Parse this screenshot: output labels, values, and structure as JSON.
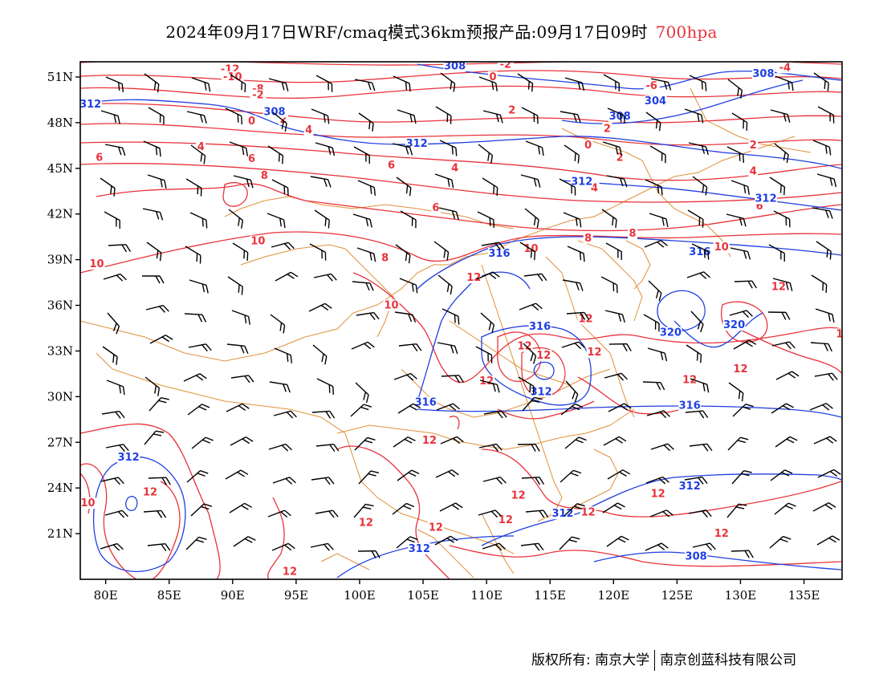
{
  "title": {
    "main": "2024年09月17日WRF/cmaq模式36km预报产品:09月17日09时",
    "level": "700hpa"
  },
  "colors": {
    "temperature": "#e8333a",
    "geopotential": "#1f3fe0",
    "border": "#e0903a",
    "wind": "#000000"
  },
  "icons": {
    "wind": "wind-barb-icon"
  },
  "axes": {
    "lon_labels": [
      "80E",
      "85E",
      "90E",
      "95E",
      "100E",
      "105E",
      "110E",
      "115E",
      "120E",
      "125E",
      "130E",
      "135E"
    ],
    "lat_labels": [
      "51N",
      "48N",
      "45N",
      "42N",
      "39N",
      "36N",
      "33N",
      "30N",
      "27N",
      "24N",
      "21N"
    ]
  },
  "map": {
    "lon_range": [
      78,
      138
    ],
    "lat_range": [
      18,
      52
    ],
    "temperature_labels": [
      {
        "text": "-2",
        "lon": 111.5,
        "lat": 51.6
      },
      {
        "text": "0",
        "lon": 110.5,
        "lat": 50.8
      },
      {
        "text": "2",
        "lon": 112.0,
        "lat": 48.6
      },
      {
        "text": "-4",
        "lon": 133.5,
        "lat": 51.4
      },
      {
        "text": "-6",
        "lon": 123.0,
        "lat": 50.2
      },
      {
        "text": "-12",
        "lon": 89.8,
        "lat": 51.3
      },
      {
        "text": "-10",
        "lon": 90.0,
        "lat": 50.8
      },
      {
        "text": "-8",
        "lon": 92.0,
        "lat": 50.0
      },
      {
        "text": "-2",
        "lon": 92.0,
        "lat": 49.6
      },
      {
        "text": "0",
        "lon": 91.5,
        "lat": 47.9
      },
      {
        "text": "2",
        "lon": 94.0,
        "lat": 48.0
      },
      {
        "text": "4",
        "lon": 96.0,
        "lat": 47.3
      },
      {
        "text": "4",
        "lon": 87.5,
        "lat": 46.2
      },
      {
        "text": "6",
        "lon": 79.5,
        "lat": 45.5
      },
      {
        "text": "6",
        "lon": 91.5,
        "lat": 45.4
      },
      {
        "text": "6",
        "lon": 102.5,
        "lat": 45.0
      },
      {
        "text": "4",
        "lon": 107.5,
        "lat": 44.8
      },
      {
        "text": "0",
        "lon": 118.0,
        "lat": 46.3
      },
      {
        "text": "2",
        "lon": 119.5,
        "lat": 47.4
      },
      {
        "text": "2",
        "lon": 120.5,
        "lat": 45.5
      },
      {
        "text": "2",
        "lon": 131.0,
        "lat": 46.3
      },
      {
        "text": "4",
        "lon": 118.5,
        "lat": 43.5
      },
      {
        "text": "4",
        "lon": 131.0,
        "lat": 44.6
      },
      {
        "text": "8",
        "lon": 92.5,
        "lat": 44.3
      },
      {
        "text": "6",
        "lon": 106.0,
        "lat": 42.2
      },
      {
        "text": "6",
        "lon": 131.5,
        "lat": 42.3
      },
      {
        "text": "10",
        "lon": 92.0,
        "lat": 40.0
      },
      {
        "text": "10",
        "lon": 79.3,
        "lat": 38.5
      },
      {
        "text": "8",
        "lon": 102.0,
        "lat": 38.9
      },
      {
        "text": "10",
        "lon": 113.5,
        "lat": 39.5
      },
      {
        "text": "8",
        "lon": 118.0,
        "lat": 40.2
      },
      {
        "text": "8",
        "lon": 121.5,
        "lat": 40.5
      },
      {
        "text": "10",
        "lon": 128.5,
        "lat": 39.6
      },
      {
        "text": "12",
        "lon": 109.0,
        "lat": 37.6
      },
      {
        "text": "12",
        "lon": 133.0,
        "lat": 37.0
      },
      {
        "text": "10",
        "lon": 102.5,
        "lat": 35.8
      },
      {
        "text": "12",
        "lon": 117.8,
        "lat": 34.9
      },
      {
        "text": "12",
        "lon": 113.0,
        "lat": 33.1
      },
      {
        "text": "12",
        "lon": 114.5,
        "lat": 32.5
      },
      {
        "text": "12",
        "lon": 118.5,
        "lat": 32.7
      },
      {
        "text": "12",
        "lon": 130.0,
        "lat": 31.6
      },
      {
        "text": "12",
        "lon": 110.0,
        "lat": 30.8
      },
      {
        "text": "12",
        "lon": 126.0,
        "lat": 30.9
      },
      {
        "text": "12",
        "lon": 105.5,
        "lat": 26.9
      },
      {
        "text": "12",
        "lon": 83.5,
        "lat": 23.5
      },
      {
        "text": "10",
        "lon": 78.6,
        "lat": 22.8
      },
      {
        "text": "12",
        "lon": 112.5,
        "lat": 23.3
      },
      {
        "text": "12",
        "lon": 123.5,
        "lat": 23.4
      },
      {
        "text": "12",
        "lon": 118.0,
        "lat": 22.2
      },
      {
        "text": "12",
        "lon": 111.5,
        "lat": 21.7
      },
      {
        "text": "12",
        "lon": 100.5,
        "lat": 21.5
      },
      {
        "text": "12",
        "lon": 106.0,
        "lat": 21.2
      },
      {
        "text": "12",
        "lon": 128.5,
        "lat": 20.8
      },
      {
        "text": "12",
        "lon": 94.5,
        "lat": 18.3
      },
      {
        "text": "1",
        "lon": 137.8,
        "lat": 33.9
      }
    ],
    "geopotential_labels": [
      {
        "text": "308",
        "lon": 107.5,
        "lat": 51.5
      },
      {
        "text": "304",
        "lon": 123.3,
        "lat": 49.2
      },
      {
        "text": "308",
        "lon": 120.5,
        "lat": 48.2
      },
      {
        "text": "308",
        "lon": 131.8,
        "lat": 51.0
      },
      {
        "text": "312",
        "lon": 78.8,
        "lat": 49.0
      },
      {
        "text": "308",
        "lon": 93.3,
        "lat": 48.5
      },
      {
        "text": "312",
        "lon": 104.5,
        "lat": 46.4
      },
      {
        "text": "312",
        "lon": 117.5,
        "lat": 43.9
      },
      {
        "text": "312",
        "lon": 132.0,
        "lat": 42.8
      },
      {
        "text": "316",
        "lon": 111.0,
        "lat": 39.2
      },
      {
        "text": "316",
        "lon": 126.8,
        "lat": 39.3
      },
      {
        "text": "320",
        "lon": 124.5,
        "lat": 34.0
      },
      {
        "text": "320",
        "lon": 129.5,
        "lat": 34.5
      },
      {
        "text": "316",
        "lon": 114.2,
        "lat": 34.4
      },
      {
        "text": "312",
        "lon": 114.3,
        "lat": 30.1
      },
      {
        "text": "316",
        "lon": 105.2,
        "lat": 29.4
      },
      {
        "text": "316",
        "lon": 126.0,
        "lat": 29.2
      },
      {
        "text": "312",
        "lon": 81.8,
        "lat": 25.8
      },
      {
        "text": "312",
        "lon": 126.0,
        "lat": 23.9
      },
      {
        "text": "312",
        "lon": 116.0,
        "lat": 22.1
      },
      {
        "text": "312",
        "lon": 104.7,
        "lat": 19.8
      },
      {
        "text": "308",
        "lon": 126.5,
        "lat": 19.3
      }
    ]
  },
  "footer": {
    "copyright": "版权所有: 南京大学",
    "company": "南京创蓝科技有限公司"
  }
}
